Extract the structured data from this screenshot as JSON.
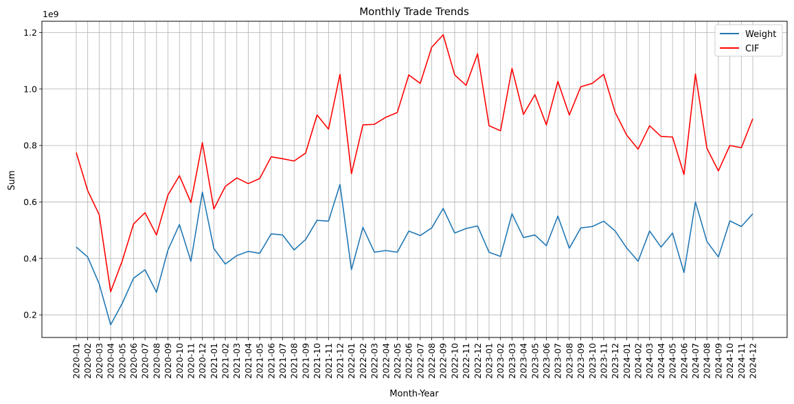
{
  "chart_data": {
    "type": "line",
    "title": "Monthly Trade Trends",
    "xlabel": "Month-Year",
    "ylabel": "Sum",
    "y_scale_label": "1e9",
    "ylim": [
      0.12,
      1.24
    ],
    "y_ticks": [
      "0.2",
      "0.4",
      "0.6",
      "0.8",
      "1.0",
      "1.2"
    ],
    "grid": true,
    "legend_position": "top-right",
    "categories": [
      "2020-01",
      "2020-02",
      "2020-03",
      "2020-04",
      "2020-05",
      "2020-06",
      "2020-07",
      "2020-08",
      "2020-09",
      "2020-10",
      "2020-11",
      "2020-12",
      "2021-01",
      "2021-02",
      "2021-03",
      "2021-04",
      "2021-05",
      "2021-06",
      "2021-07",
      "2021-08",
      "2021-09",
      "2021-10",
      "2021-11",
      "2021-12",
      "2022-01",
      "2022-02",
      "2022-03",
      "2022-04",
      "2022-05",
      "2022-06",
      "2022-07",
      "2022-08",
      "2022-09",
      "2022-10",
      "2022-11",
      "2022-12",
      "2023-01",
      "2023-02",
      "2023-03",
      "2023-04",
      "2023-05",
      "2023-06",
      "2023-07",
      "2023-08",
      "2023-09",
      "2023-10",
      "2023-11",
      "2023-12",
      "2024-01",
      "2024-02",
      "2024-03",
      "2024-04",
      "2024-05",
      "2024-06",
      "2024-07",
      "2024-08",
      "2024-09",
      "2024-10",
      "2024-11",
      "2024-12"
    ],
    "series": [
      {
        "name": "Weight",
        "color": "#1f77b4",
        "values": [
          0.44,
          0.405,
          0.31,
          0.165,
          0.24,
          0.33,
          0.36,
          0.28,
          0.43,
          0.52,
          0.39,
          0.635,
          0.435,
          0.38,
          0.41,
          0.425,
          0.418,
          0.487,
          0.483,
          0.43,
          0.467,
          0.535,
          0.532,
          0.662,
          0.36,
          0.51,
          0.422,
          0.428,
          0.422,
          0.497,
          0.481,
          0.508,
          0.577,
          0.49,
          0.506,
          0.515,
          0.422,
          0.407,
          0.558,
          0.474,
          0.483,
          0.445,
          0.55,
          0.436,
          0.508,
          0.513,
          0.532,
          0.497,
          0.437,
          0.39,
          0.497,
          0.44,
          0.49,
          0.35,
          0.6,
          0.46,
          0.405,
          0.533,
          0.513,
          0.558
        ]
      },
      {
        "name": "CIF",
        "color": "#ff0000",
        "values": [
          0.775,
          0.64,
          0.555,
          0.282,
          0.39,
          0.522,
          0.562,
          0.483,
          0.625,
          0.693,
          0.598,
          0.81,
          0.575,
          0.655,
          0.685,
          0.665,
          0.683,
          0.76,
          0.753,
          0.745,
          0.773,
          0.908,
          0.858,
          1.052,
          0.7,
          0.873,
          0.875,
          0.9,
          0.917,
          1.05,
          1.02,
          1.148,
          1.192,
          1.05,
          1.013,
          1.125,
          0.87,
          0.852,
          1.073,
          0.91,
          0.98,
          0.873,
          1.027,
          0.908,
          1.008,
          1.02,
          1.052,
          0.917,
          0.837,
          0.787,
          0.87,
          0.832,
          0.83,
          0.697,
          1.053,
          0.79,
          0.71,
          0.8,
          0.792,
          0.895
        ]
      }
    ]
  }
}
